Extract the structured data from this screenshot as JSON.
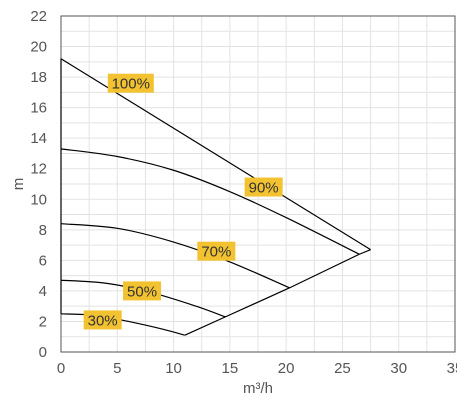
{
  "chart_data": {
    "type": "line",
    "xlabel": "m³/h",
    "ylabel": "m",
    "xlim": [
      0,
      35
    ],
    "ylim": [
      0,
      22
    ],
    "xticks": [
      0,
      5,
      10,
      15,
      20,
      25,
      30,
      35
    ],
    "yticks": [
      0,
      2,
      4,
      6,
      8,
      10,
      12,
      14,
      16,
      18,
      20,
      22
    ],
    "grid": true,
    "colors": {
      "curve": "#000000",
      "label_bg": "#f2c230",
      "grid": "#e3e3e3",
      "axis": "#555555"
    },
    "series": [
      {
        "name": "100%",
        "label_at": [
          6.2,
          17.6
        ],
        "x": [
          0,
          27.5
        ],
        "y": [
          19.2,
          6.7
        ]
      },
      {
        "name": "90%",
        "label_at": [
          18,
          10.8
        ],
        "x": [
          0,
          5,
          10,
          15,
          20,
          26.5
        ],
        "y": [
          13.3,
          12.8,
          11.9,
          10.5,
          8.8,
          6.4
        ]
      },
      {
        "name": "70%",
        "label_at": [
          13.8,
          6.6
        ],
        "x": [
          0,
          5,
          10,
          15,
          20.3
        ],
        "y": [
          8.4,
          8.1,
          7.2,
          5.9,
          4.2
        ]
      },
      {
        "name": "50%",
        "label_at": [
          7.2,
          4.0
        ],
        "x": [
          0,
          4,
          8,
          12,
          14.6
        ],
        "y": [
          4.7,
          4.5,
          3.9,
          3.0,
          2.3
        ]
      },
      {
        "name": "30%",
        "label_at": [
          3.7,
          2.1
        ],
        "x": [
          0,
          3,
          6,
          9,
          11
        ],
        "y": [
          2.5,
          2.4,
          2.0,
          1.5,
          1.1
        ]
      }
    ],
    "boundaries": [
      {
        "x": [
          11,
          14.6,
          20.3,
          26.5,
          27.5
        ],
        "y": [
          1.1,
          2.3,
          4.2,
          6.4,
          6.7
        ]
      },
      {
        "x": [
          0,
          0
        ],
        "y": [
          2.5,
          19.2
        ]
      }
    ]
  }
}
